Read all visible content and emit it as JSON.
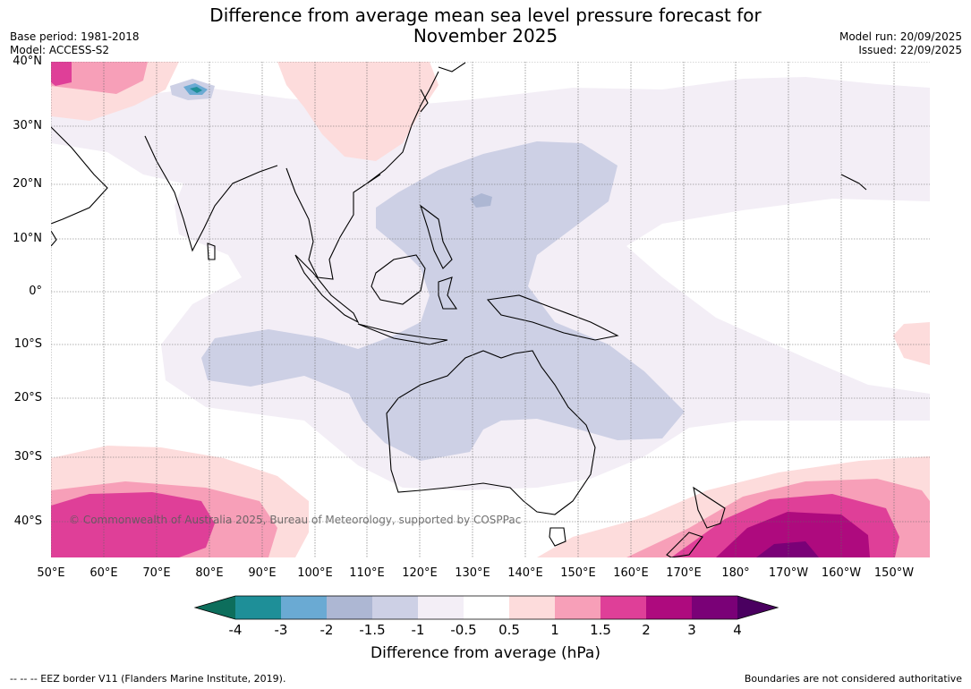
{
  "title": {
    "line1": "Difference from average mean sea level pressure forecast for",
    "line2": "November 2025"
  },
  "header_left": {
    "base_period": "Base period: 1981-2018",
    "model": "Model: ACCESS-S2"
  },
  "header_right": {
    "model_run": "Model run: 20/09/2025",
    "issued": "Issued: 22/09/2025"
  },
  "map": {
    "lat_ticks": [
      "40°N",
      "30°N",
      "20°N",
      "10°N",
      "0°",
      "10°S",
      "20°S",
      "30°S",
      "40°S"
    ],
    "lon_ticks": [
      "50°E",
      "60°E",
      "70°E",
      "80°E",
      "90°E",
      "100°E",
      "110°E",
      "120°E",
      "130°E",
      "140°E",
      "150°E",
      "160°E",
      "170°E",
      "180°",
      "170°W",
      "160°W",
      "150°W"
    ],
    "copyright": "© Commonwealth of Australia 2025, Bureau of Meteorology, supported by COSPPac"
  },
  "colorbar": {
    "title": "Difference from average (hPa)",
    "ticks": [
      "-4",
      "-3",
      "-2",
      "-1.5",
      "-1",
      "-0.5",
      "0.5",
      "1",
      "1.5",
      "2",
      "3",
      "4"
    ],
    "colors": {
      "lt_m4": "#0d6e5c",
      "m4_m3": "#1e8f98",
      "m3_m2": "#6aaad3",
      "m2_m15": "#adb7d3",
      "m15_m1": "#cdd0e5",
      "m1_m05": "#f3eef6",
      "m05_05": "#ffffff",
      "p05_1": "#fddcdc",
      "p1_15": "#f79fb8",
      "p15_2": "#df3f98",
      "p2_3": "#ae0a7e",
      "p3_4": "#7a0177",
      "gt_4": "#4a0060"
    }
  },
  "footer": {
    "eez": "--  --  -- EEZ border V11 (Flanders Marine Institute, 2019).",
    "disclaimer": "Boundaries are not considered authoritative"
  }
}
